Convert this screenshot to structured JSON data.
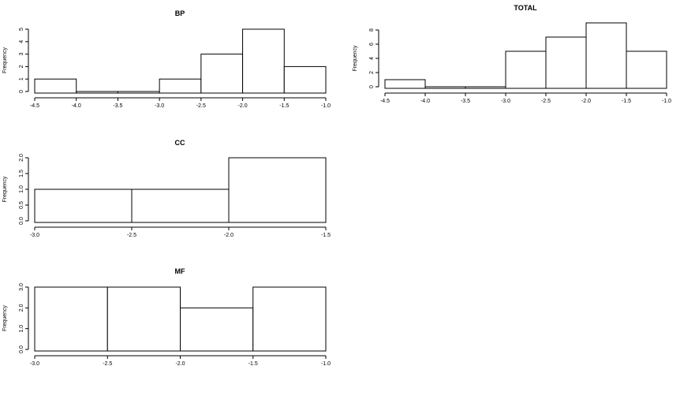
{
  "chart_data": [
    {
      "type": "bar",
      "title": "BP",
      "ylabel": "Frequency",
      "xlabel": "",
      "bins": [
        {
          "from": -4.5,
          "to": -4.0,
          "count": 1
        },
        {
          "from": -4.0,
          "to": -3.5,
          "count": 0
        },
        {
          "from": -3.5,
          "to": -3.0,
          "count": 0
        },
        {
          "from": -3.0,
          "to": -2.5,
          "count": 1
        },
        {
          "from": -2.5,
          "to": -2.0,
          "count": 3
        },
        {
          "from": -2.0,
          "to": -1.5,
          "count": 5
        },
        {
          "from": -1.5,
          "to": -1.0,
          "count": 2
        }
      ],
      "xlim": [
        -4.5,
        -1.0
      ],
      "ylim": [
        0,
        5
      ],
      "xticks": [
        "-4.5",
        "-4.0",
        "-3.5",
        "-3.0",
        "-2.5",
        "-2.0",
        "-1.5",
        "-1.0"
      ],
      "yticks": [
        "0",
        "1",
        "2",
        "3",
        "4",
        "5"
      ],
      "ytick_values": [
        0,
        1,
        2,
        3,
        4,
        5
      ],
      "grid": false
    },
    {
      "type": "bar",
      "title": "TOTAL",
      "ylabel": "Frequency",
      "xlabel": "",
      "bins": [
        {
          "from": -4.5,
          "to": -4.0,
          "count": 1
        },
        {
          "from": -4.0,
          "to": -3.5,
          "count": 0
        },
        {
          "from": -3.5,
          "to": -3.0,
          "count": 0
        },
        {
          "from": -3.0,
          "to": -2.5,
          "count": 5
        },
        {
          "from": -2.5,
          "to": -2.0,
          "count": 7
        },
        {
          "from": -2.0,
          "to": -1.5,
          "count": 9
        },
        {
          "from": -1.5,
          "to": -1.0,
          "count": 5
        }
      ],
      "xlim": [
        -4.5,
        -1.0
      ],
      "ylim": [
        0,
        8
      ],
      "xticks": [
        "-4.5",
        "-4.0",
        "-3.5",
        "-3.0",
        "-2.5",
        "-2.0",
        "-1.5",
        "-1.0"
      ],
      "yticks": [
        "0",
        "2",
        "4",
        "6",
        "8"
      ],
      "ytick_values": [
        0,
        2,
        4,
        6,
        8
      ],
      "grid": false
    },
    {
      "type": "bar",
      "title": "CC",
      "ylabel": "Frequency",
      "xlabel": "",
      "bins": [
        {
          "from": -3.0,
          "to": -2.5,
          "count": 1
        },
        {
          "from": -2.5,
          "to": -2.0,
          "count": 1
        },
        {
          "from": -2.0,
          "to": -1.5,
          "count": 2
        }
      ],
      "xlim": [
        -3.0,
        -1.5
      ],
      "ylim": [
        0,
        2
      ],
      "xticks": [
        "-3.0",
        "-2.5",
        "-2.0",
        "-1.5"
      ],
      "yticks": [
        "0.0",
        "0.5",
        "1.0",
        "1.5",
        "2.0"
      ],
      "ytick_values": [
        0,
        0.5,
        1.0,
        1.5,
        2.0
      ],
      "grid": false
    },
    {
      "type": "bar",
      "title": "MF",
      "ylabel": "Frequency",
      "xlabel": "",
      "bins": [
        {
          "from": -3.0,
          "to": -2.5,
          "count": 3
        },
        {
          "from": -2.5,
          "to": -2.0,
          "count": 3
        },
        {
          "from": -2.0,
          "to": -1.5,
          "count": 2
        },
        {
          "from": -1.5,
          "to": -1.0,
          "count": 3
        }
      ],
      "xlim": [
        -3.0,
        -1.0
      ],
      "ylim": [
        0,
        3
      ],
      "xticks": [
        "-3.0",
        "-2.5",
        "-2.0",
        "-1.5",
        "-1.0"
      ],
      "yticks": [
        "0.0",
        "1.0",
        "2.0",
        "3.0"
      ],
      "ytick_values": [
        0,
        1.0,
        2.0,
        3.0
      ],
      "grid": false
    }
  ]
}
